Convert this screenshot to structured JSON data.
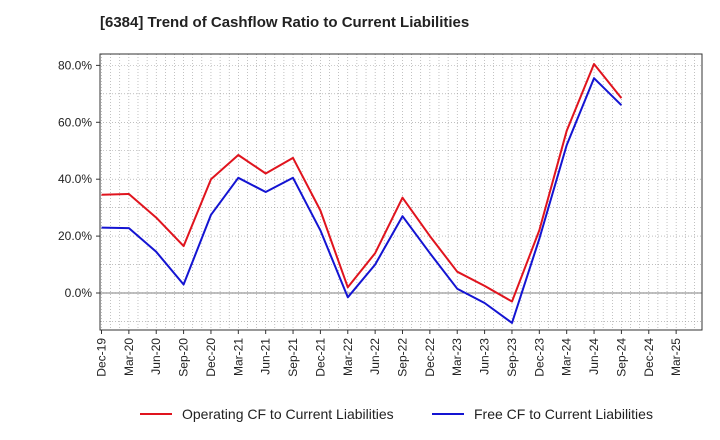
{
  "chart_data": {
    "type": "line",
    "title": "[6384]  Trend of Cashflow Ratio to Current Liabilities",
    "xlabel": "",
    "ylabel": "",
    "categories": [
      "Dec-19",
      "Mar-20",
      "Jun-20",
      "Sep-20",
      "Dec-20",
      "Mar-21",
      "Jun-21",
      "Sep-21",
      "Dec-21",
      "Mar-22",
      "Jun-22",
      "Sep-22",
      "Dec-22",
      "Mar-23",
      "Jun-23",
      "Sep-23",
      "Dec-23",
      "Mar-24",
      "Jun-24",
      "Sep-24",
      "Dec-24",
      "Mar-25"
    ],
    "x_tick_labels": [
      "Dec-19",
      "Mar-20",
      "Jun-20",
      "Sep-20",
      "Dec-20",
      "Mar-21",
      "Jun-21",
      "Sep-21",
      "Dec-21",
      "Mar-22",
      "Jun-22",
      "Sep-22",
      "Dec-22",
      "Mar-23",
      "Jun-23",
      "Sep-23",
      "Dec-23",
      "Mar-24",
      "Jun-24",
      "Sep-24",
      "Dec-24",
      "Mar-25"
    ],
    "y_ticks": [
      0,
      20,
      40,
      60,
      80
    ],
    "y_tick_labels": [
      "0.0%",
      "20.0%",
      "40.0%",
      "60.0%",
      "80.0%"
    ],
    "ylim": [
      -13,
      84
    ],
    "grid": true,
    "legend_position": "bottom",
    "series": [
      {
        "name": "Operating CF to Current Liabilities",
        "color": "#e0141e",
        "values": [
          34.5,
          34.8,
          26.5,
          16.5,
          40.0,
          48.5,
          42.0,
          47.5,
          29.0,
          2.0,
          14.0,
          33.5,
          20.0,
          7.5,
          2.5,
          -3.0,
          22.0,
          57.0,
          80.5,
          68.5,
          null,
          null
        ]
      },
      {
        "name": "Free CF to Current Liabilities",
        "color": "#1414d2",
        "values": [
          23.0,
          22.8,
          14.5,
          3.0,
          27.5,
          40.5,
          35.5,
          40.5,
          22.0,
          -1.5,
          10.0,
          27.0,
          14.0,
          1.5,
          -3.5,
          -10.5,
          19.0,
          52.0,
          75.5,
          66.0,
          null,
          null
        ]
      }
    ]
  }
}
